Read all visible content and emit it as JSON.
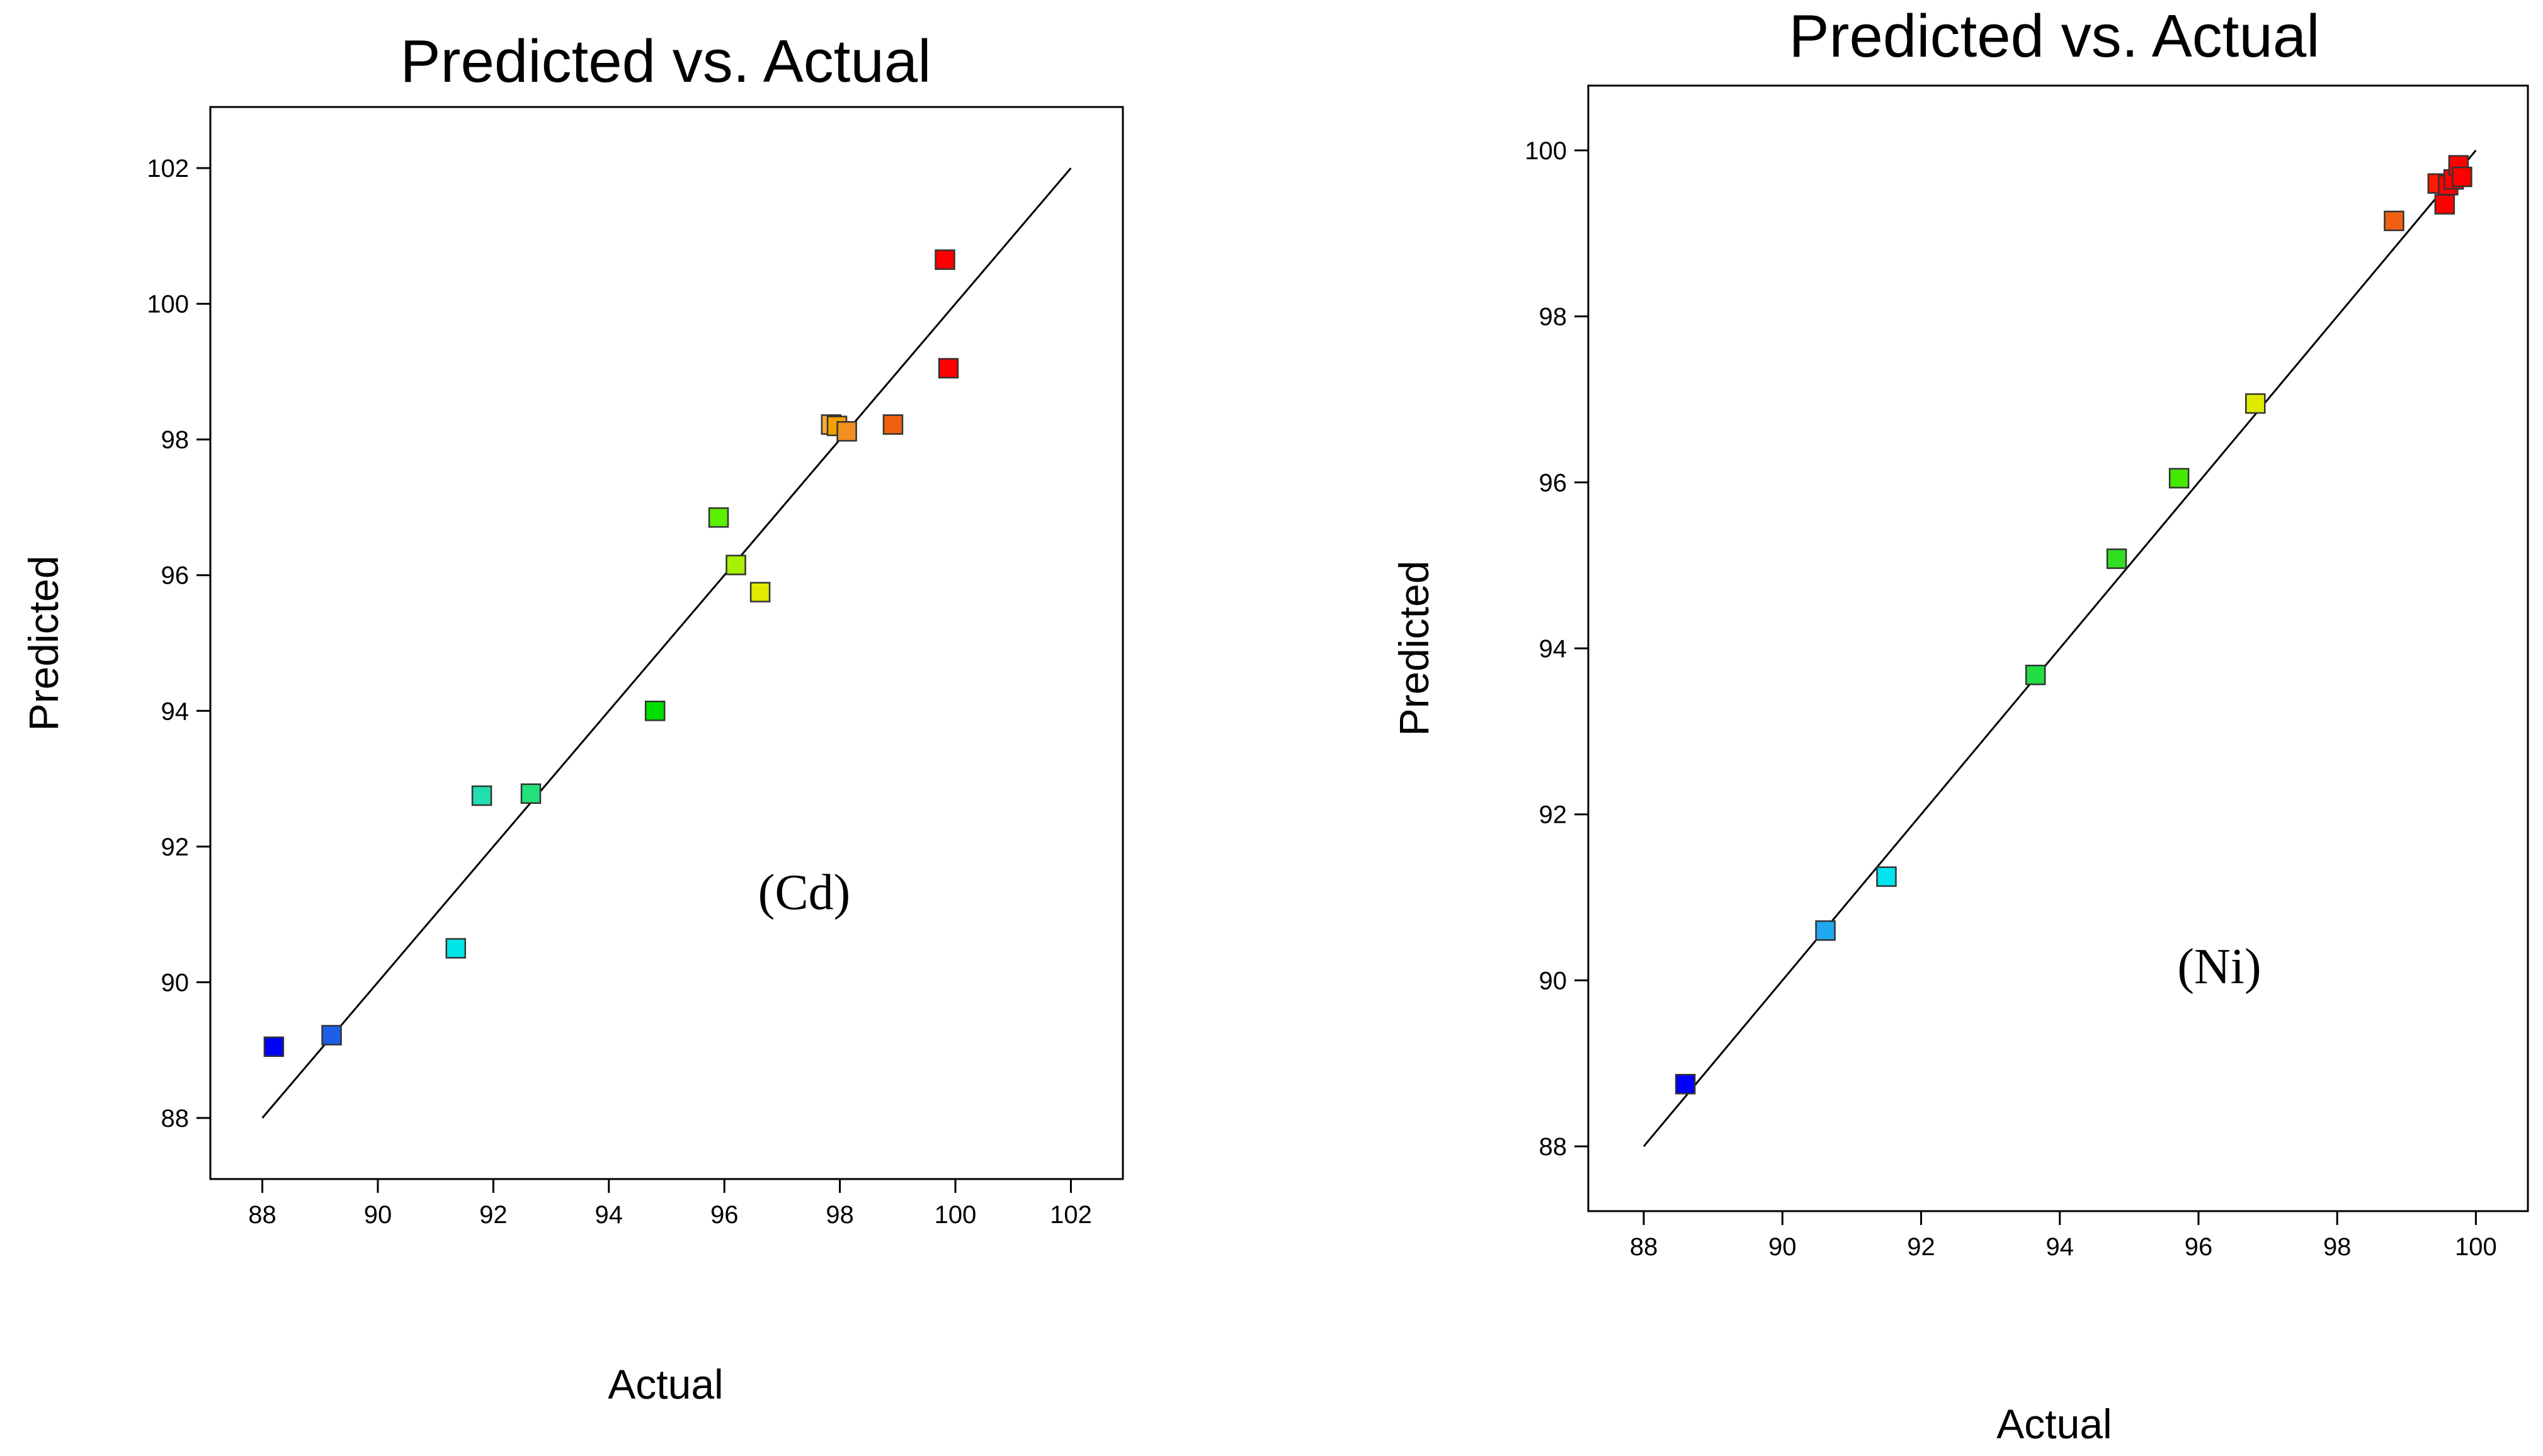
{
  "chart_data": [
    {
      "type": "scatter",
      "title": "Predicted vs. Actual",
      "xlabel": "Actual",
      "ylabel": "Predicted",
      "annotation": "(Cd)",
      "xlim": [
        87.1,
        102.9
      ],
      "ylim": [
        87.1,
        102.9
      ],
      "xticks": [
        88,
        90,
        92,
        94,
        96,
        98,
        100,
        102
      ],
      "yticks": [
        88,
        90,
        92,
        94,
        96,
        98,
        100,
        102
      ],
      "xtick_labels": [
        "88",
        "90",
        "92",
        "94",
        "96",
        "98",
        "100",
        "102"
      ],
      "ytick_labels": [
        "88",
        "90",
        "92",
        "94",
        "96",
        "98",
        "100",
        "102"
      ],
      "fit_line": {
        "from": [
          88,
          88
        ],
        "to": [
          102,
          102
        ]
      },
      "points": [
        {
          "x": 88.2,
          "y": 89.05,
          "color": "#0000ff"
        },
        {
          "x": 89.2,
          "y": 89.22,
          "color": "#1e5fe8"
        },
        {
          "x": 91.35,
          "y": 90.5,
          "color": "#00e5e5"
        },
        {
          "x": 91.8,
          "y": 92.75,
          "color": "#22ddb0"
        },
        {
          "x": 92.65,
          "y": 92.78,
          "color": "#22e07a"
        },
        {
          "x": 94.8,
          "y": 94.0,
          "color": "#00e000"
        },
        {
          "x": 95.9,
          "y": 96.85,
          "color": "#5af000"
        },
        {
          "x": 96.2,
          "y": 96.15,
          "color": "#a8f000"
        },
        {
          "x": 96.62,
          "y": 95.75,
          "color": "#e0ea00"
        },
        {
          "x": 97.85,
          "y": 98.22,
          "color": "#f5ad30"
        },
        {
          "x": 97.95,
          "y": 98.2,
          "color": "#f5a000"
        },
        {
          "x": 98.12,
          "y": 98.12,
          "color": "#f09020"
        },
        {
          "x": 98.92,
          "y": 98.22,
          "color": "#f06010"
        },
        {
          "x": 99.82,
          "y": 100.65,
          "color": "#ff0000"
        },
        {
          "x": 99.88,
          "y": 99.05,
          "color": "#ff0000"
        }
      ]
    },
    {
      "type": "scatter",
      "title": "Predicted vs. Actual",
      "xlabel": "Actual",
      "ylabel": "Predicted",
      "annotation": "(Ni)",
      "xlim": [
        87.2,
        100.75
      ],
      "ylim": [
        87.22,
        100.78
      ],
      "xticks": [
        88,
        90,
        92,
        94,
        96,
        98,
        100
      ],
      "yticks": [
        88,
        90,
        92,
        94,
        96,
        98,
        100
      ],
      "xtick_labels": [
        "88",
        "90",
        "92",
        "94",
        "96",
        "98",
        "100"
      ],
      "ytick_labels": [
        "88",
        "90",
        "92",
        "94",
        "96",
        "98",
        "100"
      ],
      "fit_line": {
        "from": [
          88,
          88
        ],
        "to": [
          100,
          100
        ]
      },
      "points": [
        {
          "x": 88.6,
          "y": 88.75,
          "color": "#0000ff"
        },
        {
          "x": 90.62,
          "y": 90.6,
          "color": "#20a8f0"
        },
        {
          "x": 91.5,
          "y": 91.25,
          "color": "#00e5f0"
        },
        {
          "x": 93.65,
          "y": 93.68,
          "color": "#22dd44"
        },
        {
          "x": 94.82,
          "y": 95.08,
          "color": "#30e020"
        },
        {
          "x": 95.72,
          "y": 96.05,
          "color": "#44e800"
        },
        {
          "x": 96.82,
          "y": 96.95,
          "color": "#e0ea00"
        },
        {
          "x": 98.82,
          "y": 99.15,
          "color": "#f06010"
        },
        {
          "x": 99.45,
          "y": 99.6,
          "color": "#ff1a00"
        },
        {
          "x": 99.55,
          "y": 99.35,
          "color": "#ff0000"
        },
        {
          "x": 99.6,
          "y": 99.58,
          "color": "#ff0000"
        },
        {
          "x": 99.68,
          "y": 99.65,
          "color": "#ff0000"
        },
        {
          "x": 99.75,
          "y": 99.82,
          "color": "#ff0000"
        },
        {
          "x": 99.8,
          "y": 99.68,
          "color": "#ff0000"
        }
      ]
    }
  ]
}
